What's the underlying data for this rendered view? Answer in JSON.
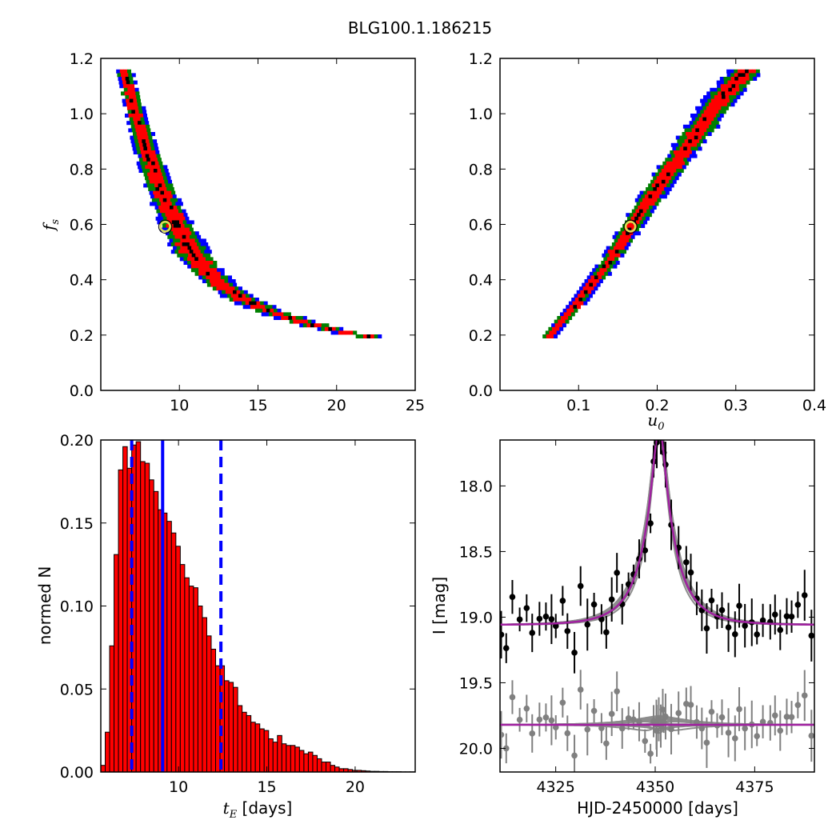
{
  "figure_title": "BLG100.1.186215",
  "chart_data": [
    {
      "id": "fs_vs_tE",
      "type": "heatmap",
      "title": "",
      "xlabel": "",
      "ylabel": "f_s",
      "ylabel_main": "f",
      "ylabel_sub": "s",
      "xlim": [
        5,
        25
      ],
      "ylim": [
        0,
        1.2
      ],
      "xticks": [
        "10",
        "15",
        "20",
        "25"
      ],
      "yticks": [
        "0.0",
        "0.2",
        "0.4",
        "0.6",
        "0.8",
        "1.0",
        "1.2"
      ],
      "levels": [
        "black",
        "red",
        "green",
        "blue"
      ],
      "colors": {
        "black": "#000000",
        "red": "#ff0000",
        "green": "#008000",
        "blue": "#0000ff"
      },
      "ridge": [
        [
          6.5,
          1.16
        ],
        [
          7.2,
          1.0
        ],
        [
          8.0,
          0.85
        ],
        [
          9.0,
          0.7
        ],
        [
          10.0,
          0.58
        ],
        [
          11.0,
          0.48
        ],
        [
          12.5,
          0.39
        ],
        [
          14.0,
          0.33
        ],
        [
          16.0,
          0.28
        ],
        [
          18.0,
          0.245
        ],
        [
          20.0,
          0.215
        ],
        [
          22.0,
          0.195
        ],
        [
          23.3,
          0.185
        ]
      ],
      "best_fit": {
        "x": 9.1,
        "y": 0.592
      }
    },
    {
      "id": "fs_vs_u0",
      "type": "heatmap",
      "title": "",
      "xlabel": "u_0",
      "xlabel_main": "u",
      "xlabel_sub": "0",
      "ylabel": "",
      "xlim": [
        0,
        0.4
      ],
      "ylim": [
        0,
        1.2
      ],
      "xticks": [
        "0.1",
        "0.2",
        "0.3",
        "0.4"
      ],
      "yticks": [
        "0.0",
        "0.2",
        "0.4",
        "0.6",
        "0.8",
        "1.0",
        "1.2"
      ],
      "ridge": [
        [
          0.06,
          0.185
        ],
        [
          0.1,
          0.32
        ],
        [
          0.14,
          0.47
        ],
        [
          0.167,
          0.592
        ],
        [
          0.2,
          0.73
        ],
        [
          0.24,
          0.89
        ],
        [
          0.28,
          1.05
        ],
        [
          0.315,
          1.16
        ]
      ],
      "best_fit": {
        "x": 0.166,
        "y": 0.592
      }
    },
    {
      "id": "tE_histogram",
      "type": "bar",
      "title": "",
      "xlabel_main": "t",
      "xlabel_sub": "E",
      "xlabel_rest": " [days]",
      "ylabel": "normed N",
      "xlim": [
        5.6,
        23.4
      ],
      "ylim": [
        0,
        0.2
      ],
      "xticks": [
        "10",
        "15",
        "20"
      ],
      "yticks": [
        "0.00",
        "0.05",
        "0.10",
        "0.15",
        "0.20"
      ],
      "bin_start": 5.6,
      "bin_width": 0.25,
      "values": [
        0.004,
        0.024,
        0.076,
        0.131,
        0.182,
        0.196,
        0.183,
        0.197,
        0.199,
        0.187,
        0.186,
        0.176,
        0.169,
        0.158,
        0.156,
        0.151,
        0.144,
        0.136,
        0.125,
        0.117,
        0.112,
        0.111,
        0.1,
        0.093,
        0.082,
        0.074,
        0.064,
        0.064,
        0.055,
        0.054,
        0.051,
        0.04,
        0.036,
        0.034,
        0.03,
        0.029,
        0.026,
        0.025,
        0.02,
        0.018,
        0.022,
        0.017,
        0.016,
        0.016,
        0.015,
        0.013,
        0.011,
        0.012,
        0.01,
        0.008,
        0.006,
        0.006,
        0.004,
        0.003,
        0.002,
        0.002,
        0.0015,
        0.001,
        0.001,
        0.0008,
        0.0006,
        0.0004,
        0.0004,
        0.0003,
        0.0003,
        0.0002,
        0.0002,
        0.0002,
        0.0001,
        0.0001,
        0.0001
      ],
      "median_line": 9.1,
      "dashed_lines": [
        7.35,
        12.4
      ],
      "bar_color": "#ff0000",
      "line_color": "#0000ff"
    },
    {
      "id": "light_curve",
      "type": "scatter",
      "title": "",
      "xlabel": "HJD-2450000 [days]",
      "ylabel": "I [mag]",
      "xlim": [
        4311,
        4390
      ],
      "ylim": [
        20.18,
        17.65
      ],
      "xticks": [
        "4325",
        "4350",
        "4375"
      ],
      "yticks": [
        "18.0",
        "18.5",
        "19.0",
        "19.5",
        "20.0"
      ],
      "model": {
        "t0": 4351.0,
        "u0": 0.166,
        "tE": 9.1,
        "fs": 0.592,
        "I_base": 19.06
      },
      "residual_offset": 19.82,
      "data_color": "#000000",
      "residual_color": "#808080",
      "model_color": "#a020a0"
    }
  ]
}
